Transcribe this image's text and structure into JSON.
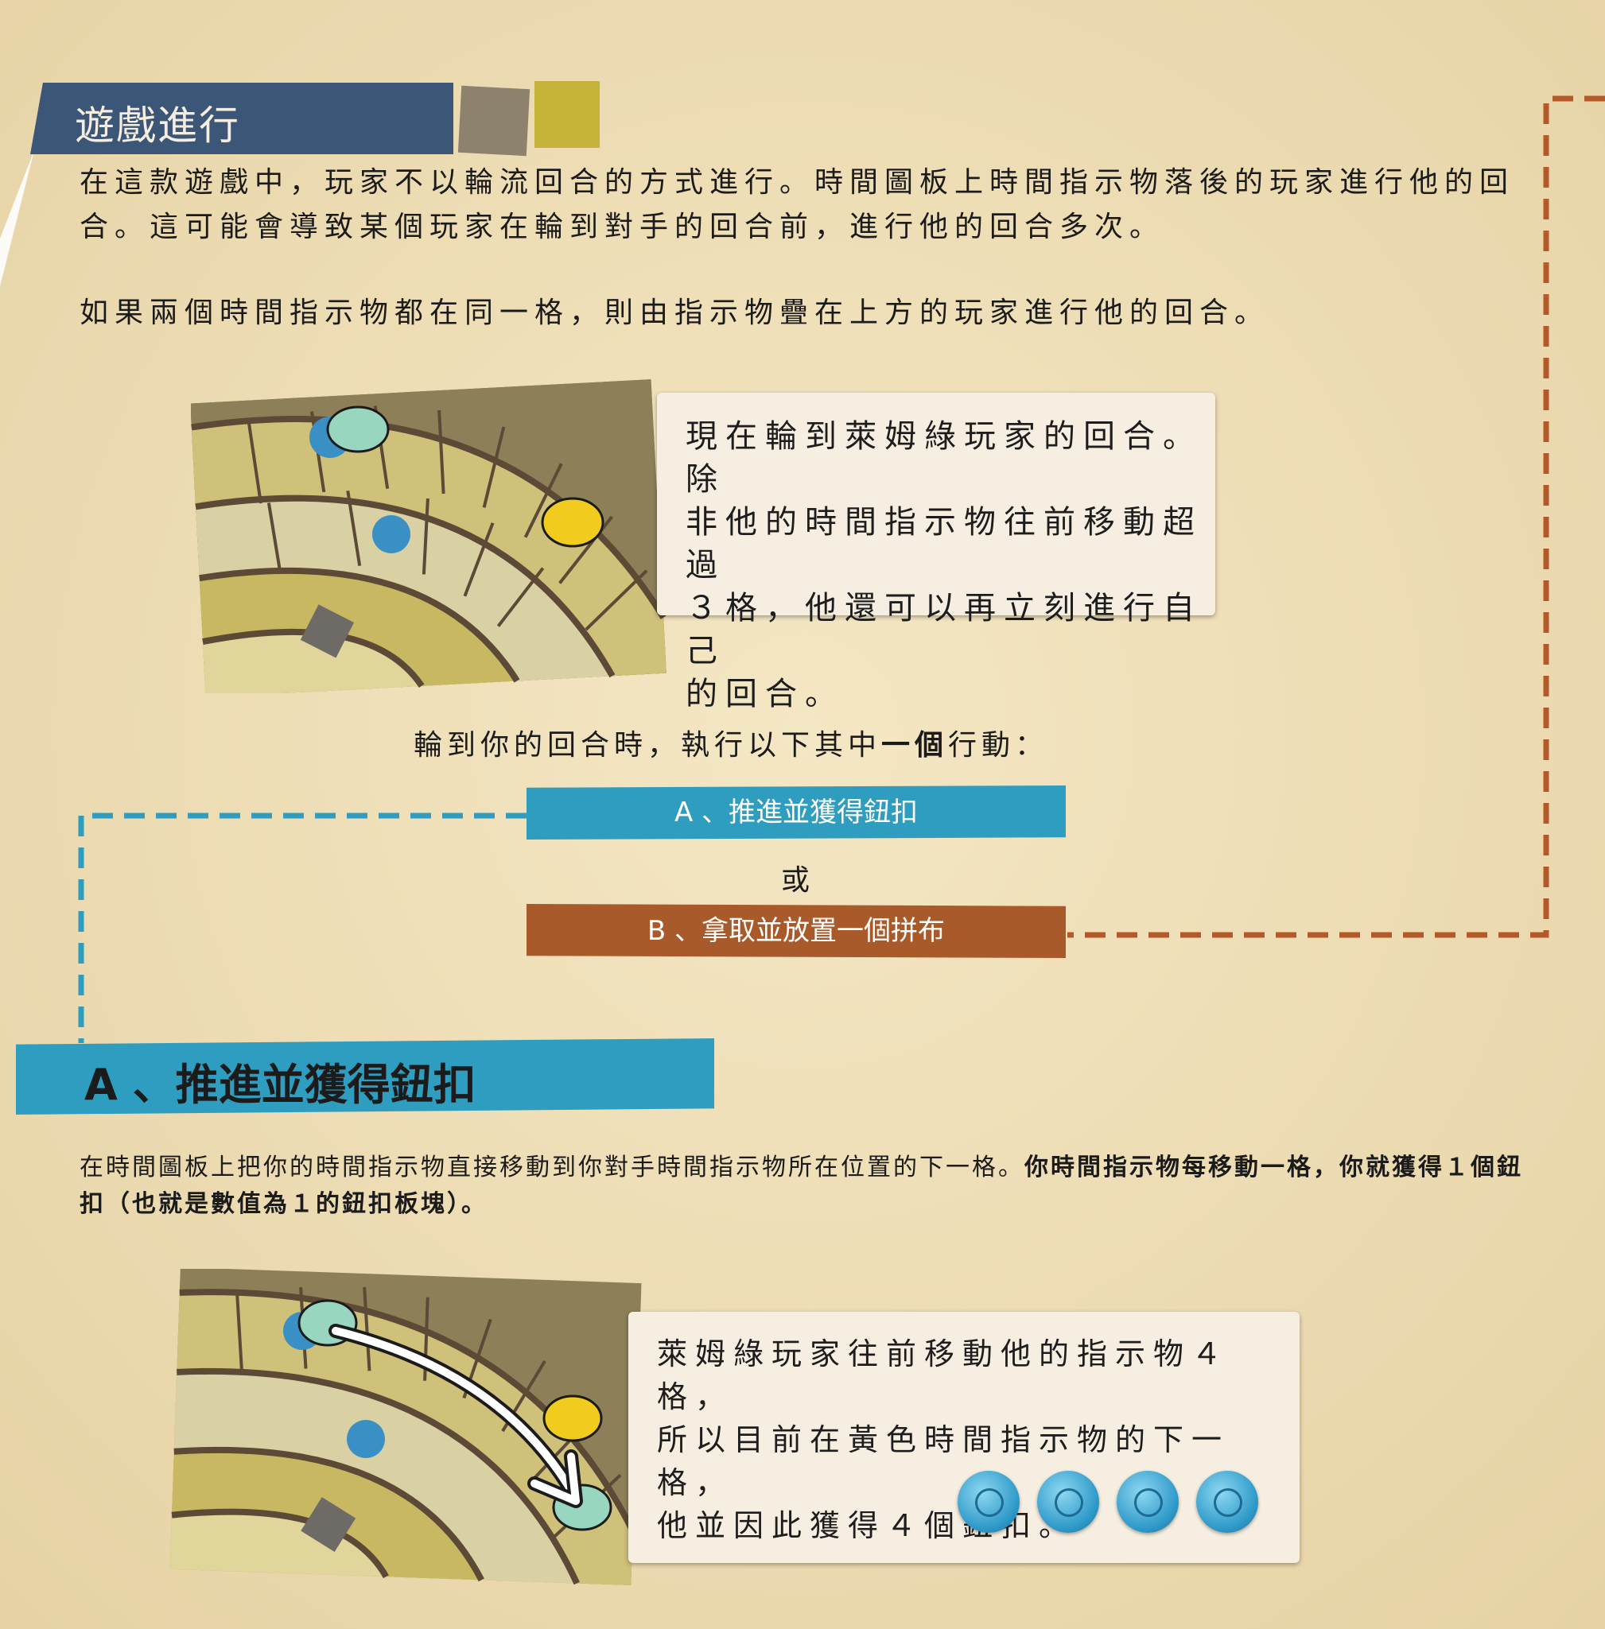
{
  "section": {
    "title": "遊戲進行",
    "paragraph1": "在這款遊戲中，玩家不以輪流回合的方式進行。時間圖板上時間指示物落後的玩家進行他的回合。這可能會導致某個玩家在輪到對手的回合前，進行他的回合多次。",
    "paragraph2": "如果兩個時間指示物都在同一格，則由指示物疊在上方的玩家進行他的回合。"
  },
  "example1": {
    "caption": "現在輪到萊姆綠玩家的回合。除\n非他的時間指示物往前移動超過\n３格，他還可以再立刻進行自己\n的回合。"
  },
  "turn": {
    "prompt_start": "輪到你的回合時，執行以下其中",
    "prompt_bold": "一個",
    "prompt_end": "行動：",
    "option_a": "A 、推進並獲得鈕扣",
    "or": "或",
    "option_b": "B 、拿取並放置一個拼布"
  },
  "action_a": {
    "header": "A 、推進並獲得鈕扣",
    "text_normal": "在時間圖板上把你的時間指示物直接移動到你對手時間指示物所在位置的下一格。",
    "text_bold": "你時間指示物每移動一格，你就獲得１個鈕扣（也就是數值為１的鈕扣板塊）。"
  },
  "example2": {
    "caption": "萊姆綠玩家往前移動他的指示物４格，\n所以目前在黃色時間指示物的下一格，\n他並因此獲得４個鈕扣。",
    "buttons_icon": "button-icon",
    "button_count": 4
  },
  "colors": {
    "background": "#efe0b8",
    "title_blue": "#3b5676",
    "action_blue": "#2f9dbf",
    "action_brown": "#a95a2a",
    "dash_brown": "#b45a2a",
    "dash_blue": "#2f9dbf"
  }
}
